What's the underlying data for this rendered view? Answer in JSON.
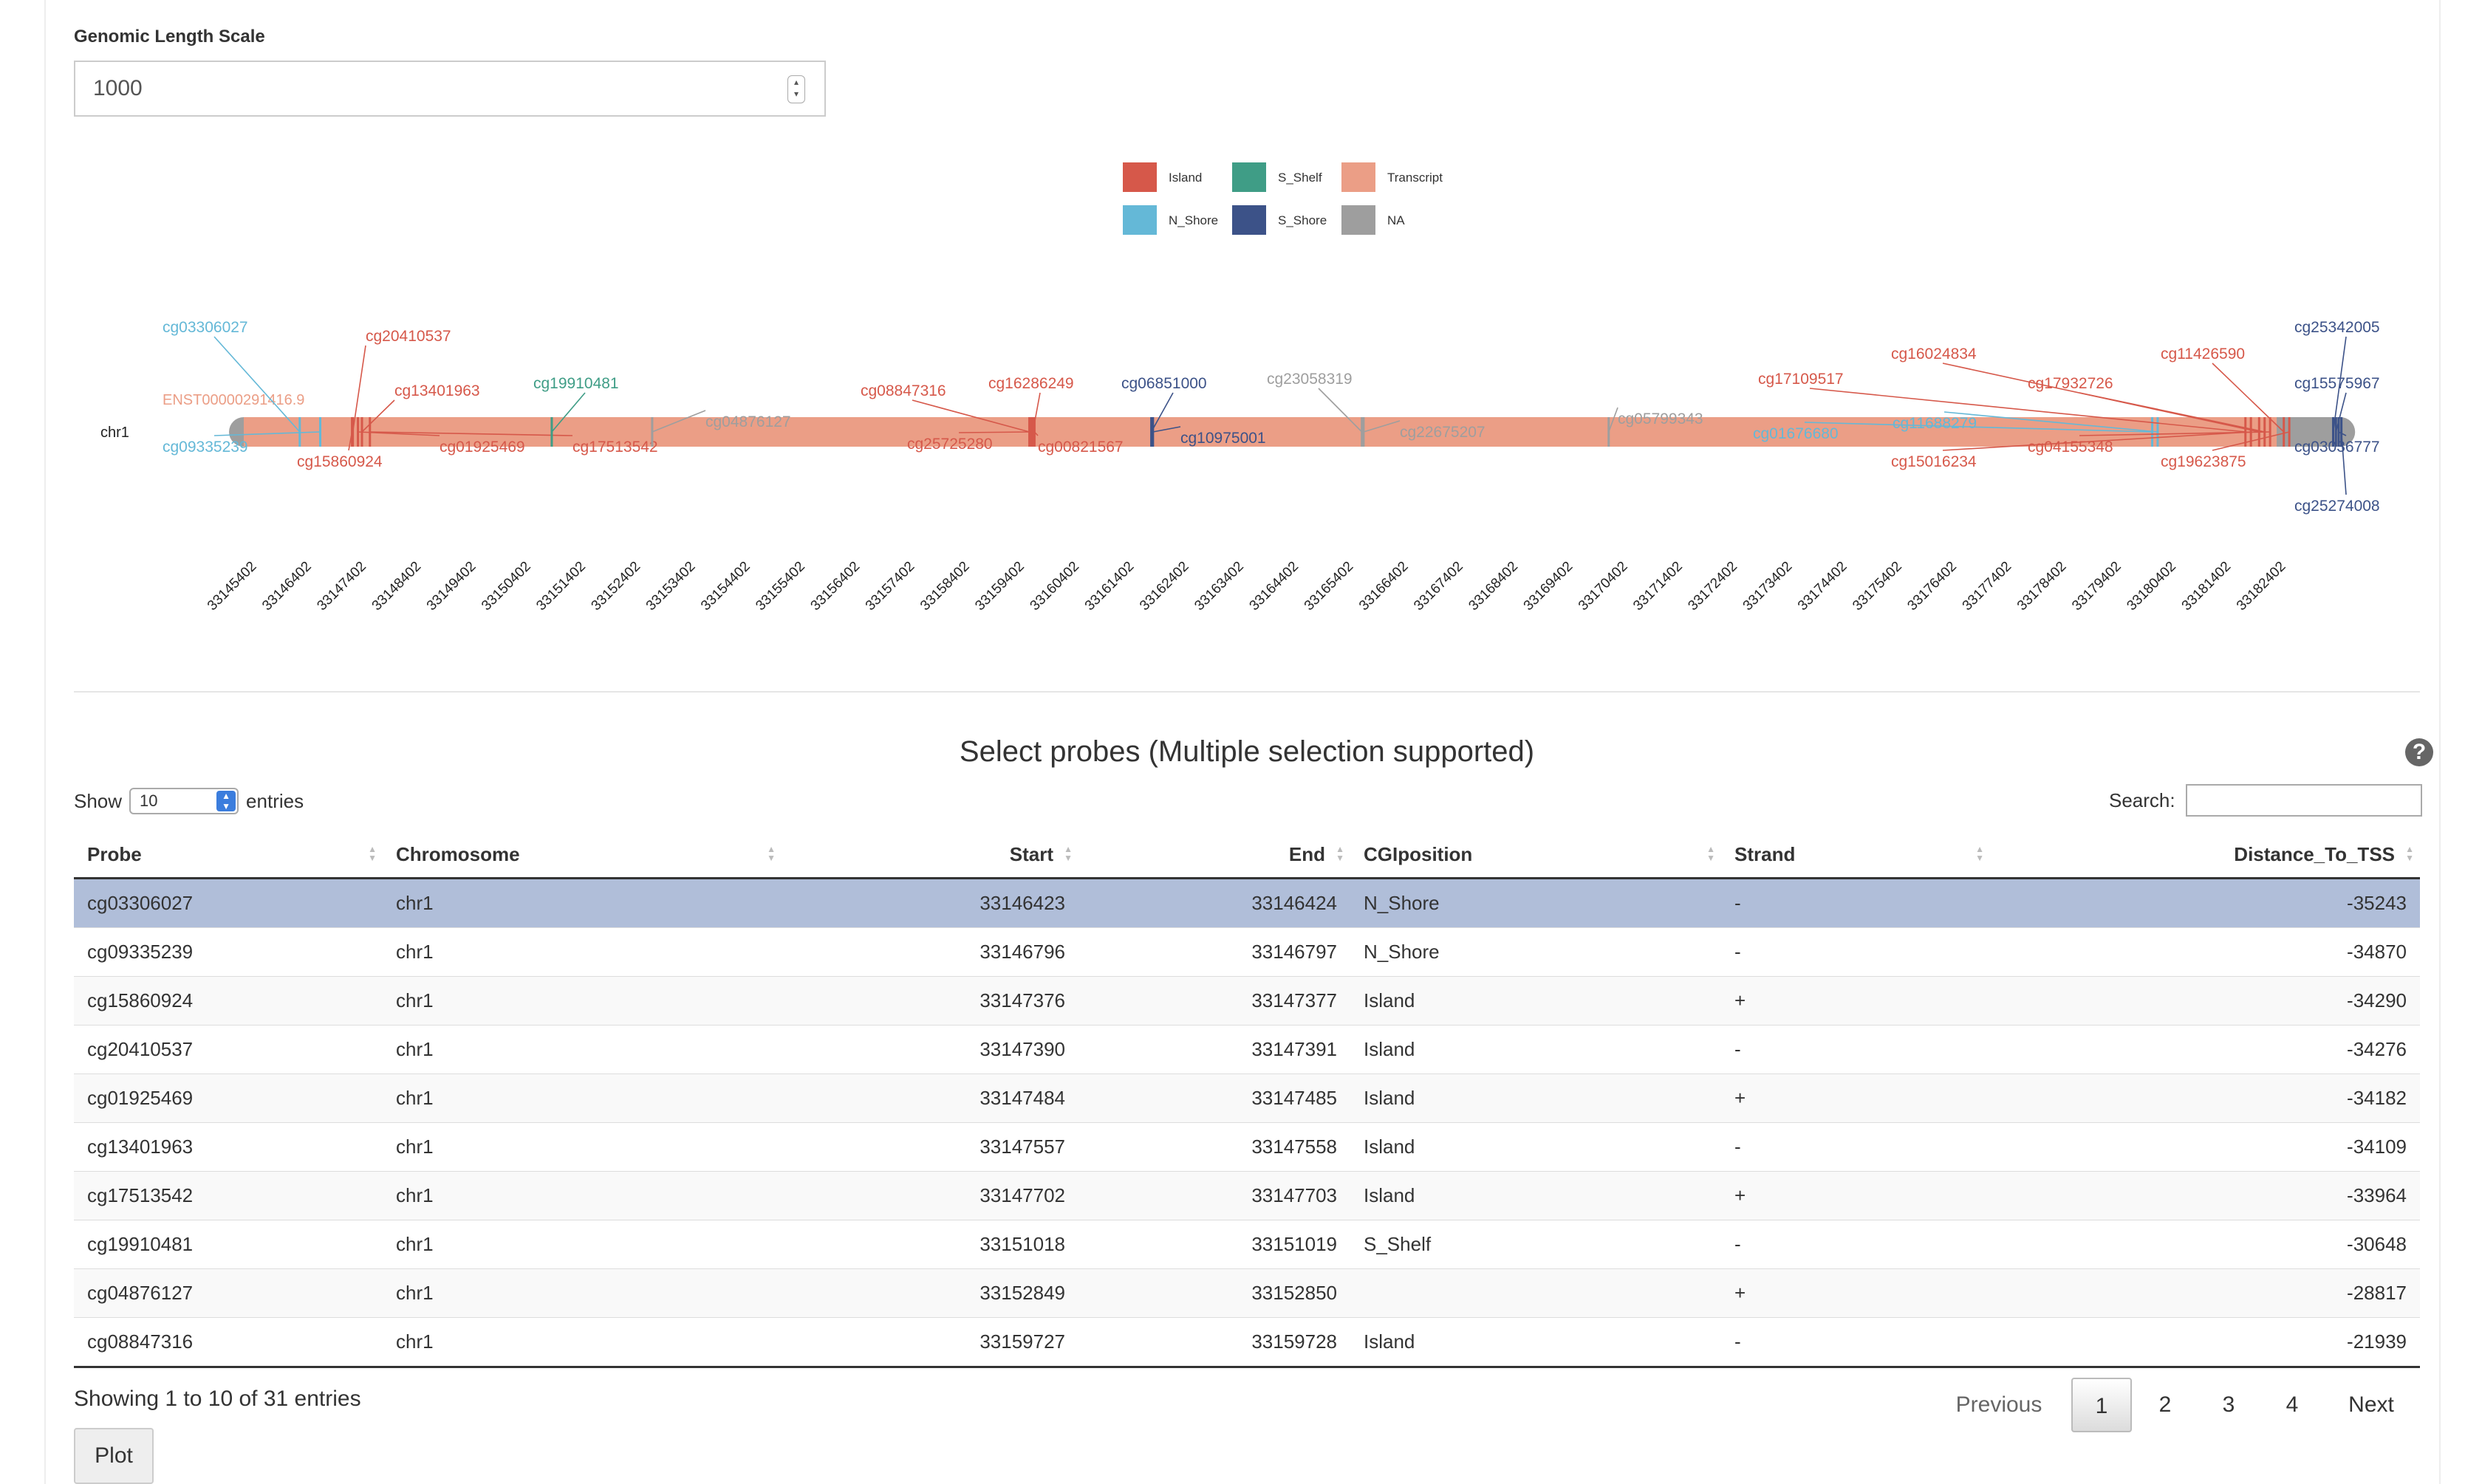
{
  "controls": {
    "length_scale_label": "Genomic Length Scale",
    "length_scale_value": "1000"
  },
  "legend": [
    {
      "label": "Island",
      "color": "#d6584a"
    },
    {
      "label": "S_Shelf",
      "color": "#3f9d86"
    },
    {
      "label": "Transcript",
      "color": "#eb9e86"
    },
    {
      "label": "N_Shore",
      "color": "#64b8d7"
    },
    {
      "label": "S_Shore",
      "color": "#3c5288"
    },
    {
      "label": "NA",
      "color": "#9e9e9e"
    }
  ],
  "colors": {
    "Island": "#d6584a",
    "S_Shelf": "#3f9d86",
    "Transcript": "#eb9e86",
    "N_Shore": "#64b8d7",
    "S_Shore": "#3c5288",
    "NA": "#9e9e9e",
    "selected_row": "#b0bed9"
  },
  "genome_plot": {
    "chromosome": "chr1",
    "transcript_label": "ENST00000291416.9",
    "range": [
      33145402,
      33182402
    ],
    "tick_labels": [
      "33145402",
      "33146402",
      "33147402",
      "33148402",
      "33149402",
      "33150402",
      "33151402",
      "33152402",
      "33153402",
      "33154402",
      "33155402",
      "33156402",
      "33157402",
      "33158402",
      "33159402",
      "33160402",
      "33161402",
      "33162402",
      "33163402",
      "33164402",
      "33165402",
      "33166402",
      "33167402",
      "33168402",
      "33169402",
      "33170402",
      "33171402",
      "33172402",
      "33173402",
      "33174402",
      "33175402",
      "33176402",
      "33177402",
      "33178402",
      "33179402",
      "33180402",
      "33181402",
      "33182402"
    ],
    "probes": [
      {
        "id": "cg03306027",
        "pos": 33146423,
        "cat": "N_Shore"
      },
      {
        "id": "cg09335239",
        "pos": 33146796,
        "cat": "N_Shore"
      },
      {
        "id": "cg20410537",
        "pos": 33147390,
        "cat": "Island"
      },
      {
        "id": "cg15860924",
        "pos": 33147376,
        "cat": "Island"
      },
      {
        "id": "cg13401963",
        "pos": 33147557,
        "cat": "Island"
      },
      {
        "id": "cg01925469",
        "pos": 33147484,
        "cat": "Island"
      },
      {
        "id": "cg17513542",
        "pos": 33147702,
        "cat": "Island"
      },
      {
        "id": "cg19910481",
        "pos": 33151018,
        "cat": "S_Shelf"
      },
      {
        "id": "cg04876127",
        "pos": 33152849,
        "cat": "NA"
      },
      {
        "id": "cg08847316",
        "pos": 33159727,
        "cat": "Island"
      },
      {
        "id": "cg25725280",
        "pos": 33159760,
        "cat": "Island"
      },
      {
        "id": "cg16286249",
        "pos": 33159790,
        "cat": "Island"
      },
      {
        "id": "cg00821567",
        "pos": 33159820,
        "cat": "Island"
      },
      {
        "id": "cg06851000",
        "pos": 33161950,
        "cat": "S_Shore"
      },
      {
        "id": "cg10975001",
        "pos": 33161980,
        "cat": "S_Shore"
      },
      {
        "id": "cg23058319",
        "pos": 33165790,
        "cat": "NA"
      },
      {
        "id": "cg22675207",
        "pos": 33165820,
        "cat": "NA"
      },
      {
        "id": "cg05799343",
        "pos": 33170290,
        "cat": "NA"
      },
      {
        "id": "cg01676680",
        "pos": 33180200,
        "cat": "N_Shore"
      },
      {
        "id": "cg11688279",
        "pos": 33180300,
        "cat": "N_Shore"
      },
      {
        "id": "cg17109517",
        "pos": 33181900,
        "cat": "Island"
      },
      {
        "id": "cg15016234",
        "pos": 33182000,
        "cat": "Island"
      },
      {
        "id": "cg16024834",
        "pos": 33182150,
        "cat": "Island"
      },
      {
        "id": "cg17932726",
        "pos": 33182250,
        "cat": "Island"
      },
      {
        "id": "cg04155348",
        "pos": 33182350,
        "cat": "Island"
      },
      {
        "id": "cg11426590",
        "pos": 33182600,
        "cat": "Island"
      },
      {
        "id": "cg19623875",
        "pos": 33182700,
        "cat": "Island"
      },
      {
        "id": "cg25342005",
        "pos": 33183500,
        "cat": "S_Shore"
      },
      {
        "id": "cg15575967",
        "pos": 33183550,
        "cat": "S_Shore"
      },
      {
        "id": "cg03036777",
        "pos": 33183600,
        "cat": "S_Shore"
      },
      {
        "id": "cg25274008",
        "pos": 33183650,
        "cat": "S_Shore"
      }
    ]
  },
  "table": {
    "title": "Select probes (Multiple selection supported)",
    "show_label": "Show",
    "entries_value": "10",
    "entries_label": "entries",
    "search_label": "Search:",
    "columns": [
      "Probe",
      "Chromosome",
      "Start",
      "End",
      "CGIposition",
      "Strand",
      "Distance_To_TSS"
    ],
    "rows": [
      [
        "cg03306027",
        "chr1",
        "33146423",
        "33146424",
        "N_Shore",
        "-",
        "-35243"
      ],
      [
        "cg09335239",
        "chr1",
        "33146796",
        "33146797",
        "N_Shore",
        "-",
        "-34870"
      ],
      [
        "cg15860924",
        "chr1",
        "33147376",
        "33147377",
        "Island",
        "+",
        "-34290"
      ],
      [
        "cg20410537",
        "chr1",
        "33147390",
        "33147391",
        "Island",
        "-",
        "-34276"
      ],
      [
        "cg01925469",
        "chr1",
        "33147484",
        "33147485",
        "Island",
        "+",
        "-34182"
      ],
      [
        "cg13401963",
        "chr1",
        "33147557",
        "33147558",
        "Island",
        "-",
        "-34109"
      ],
      [
        "cg17513542",
        "chr1",
        "33147702",
        "33147703",
        "Island",
        "+",
        "-33964"
      ],
      [
        "cg19910481",
        "chr1",
        "33151018",
        "33151019",
        "S_Shelf",
        "-",
        "-30648"
      ],
      [
        "cg04876127",
        "chr1",
        "33152849",
        "33152850",
        "",
        "+",
        "-28817"
      ],
      [
        "cg08847316",
        "chr1",
        "33159727",
        "33159728",
        "Island",
        "-",
        "-21939"
      ]
    ],
    "info": "Showing 1 to 10 of 31 entries",
    "pagination": {
      "previous": "Previous",
      "pages": [
        "1",
        "2",
        "3",
        "4"
      ],
      "current": "1",
      "next": "Next"
    }
  },
  "plot_button": "Plot"
}
